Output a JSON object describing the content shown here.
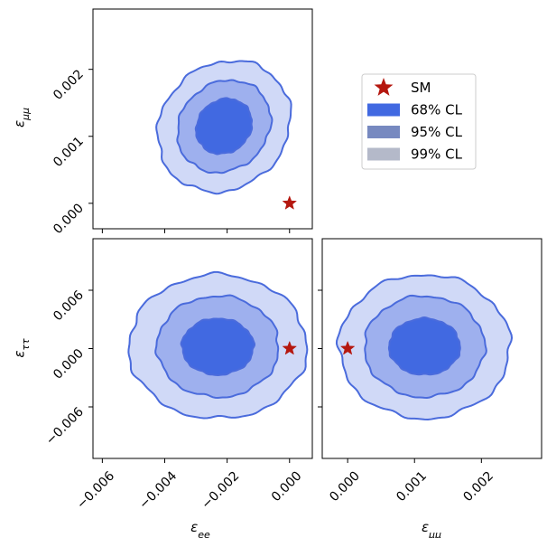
{
  "chart_data": {
    "type": "contour",
    "colors": {
      "cl68": "#4169e1",
      "cl95": "#7789c0",
      "cl99": "#b4b9c9",
      "fill68": "#4169e1",
      "fill95": "#9eb0ee",
      "fill99": "#d0d9f7",
      "edge": "#4a6bdc",
      "sm": "#b5170f"
    },
    "legend": {
      "placement": "upper-right empty cell",
      "items": [
        {
          "key": "sm",
          "label": "SM",
          "marker": "star"
        },
        {
          "key": "cl68",
          "label": "68% CL",
          "marker": "patch"
        },
        {
          "key": "cl95",
          "label": "95% CL",
          "marker": "patch"
        },
        {
          "key": "cl99",
          "label": "99% CL",
          "marker": "patch"
        }
      ]
    },
    "axis_labels": {
      "ee": "ε_ee",
      "mumu": "ε_μμ",
      "tautau": "ε_ττ"
    },
    "panels": [
      {
        "id": "mumu_vs_ee",
        "xvar": "ee",
        "yvar": "mumu",
        "xlim": [
          -0.0063,
          0.00073
        ],
        "ylim": [
          -0.00038,
          0.0029
        ],
        "xticks": [
          -0.006,
          -0.004,
          -0.002,
          0.0
        ],
        "yticks": [
          0.0,
          0.001,
          0.002
        ],
        "ytick_labels": [
          "0.000",
          "0.001",
          "0.002"
        ],
        "center": [
          -0.0021,
          0.00115
        ],
        "semi_axes": {
          "cl68": [
            0.00083,
            0.00044
          ],
          "cl95": [
            0.00138,
            0.00074
          ],
          "cl99": [
            0.00197,
            0.00105
          ]
        },
        "angle_deg": -48,
        "sm_point": [
          0.0,
          0.0
        ]
      },
      {
        "id": "tautau_vs_ee",
        "xvar": "ee",
        "yvar": "tautau",
        "xlim": [
          -0.0063,
          0.00073
        ],
        "ylim": [
          -0.0113,
          0.0113
        ],
        "xticks": [
          -0.006,
          -0.004,
          -0.002,
          0.0
        ],
        "xtick_labels": [
          "−0.006",
          "−0.004",
          "−0.002",
          "0.000"
        ],
        "yticks": [
          -0.006,
          0.0,
          0.006
        ],
        "ytick_labels": [
          "−0.006",
          "0.000",
          "0.006"
        ],
        "center": [
          -0.0023,
          0.0002
        ],
        "semi_axes": {
          "cl68": [
            0.00115,
            0.0029
          ],
          "cl95": [
            0.00195,
            0.0052
          ],
          "cl99": [
            0.00285,
            0.0074
          ]
        },
        "angle_deg": 0,
        "sm_point": [
          0.0,
          0.0
        ]
      },
      {
        "id": "tautau_vs_mumu",
        "xvar": "mumu",
        "yvar": "tautau",
        "xlim": [
          -0.00038,
          0.0029
        ],
        "ylim": [
          -0.0113,
          0.0113
        ],
        "xticks": [
          0.0,
          0.001,
          0.002
        ],
        "xtick_labels": [
          "0.000",
          "0.001",
          "0.002"
        ],
        "yticks": [
          -0.006,
          0.0,
          0.006
        ],
        "center": [
          0.00115,
          0.0002
        ],
        "semi_axes": {
          "cl68": [
            0.00053,
            0.0029
          ],
          "cl95": [
            0.0009,
            0.0052
          ],
          "cl99": [
            0.00128,
            0.0074
          ]
        },
        "angle_deg": 0,
        "sm_point": [
          0.0,
          0.0
        ]
      }
    ]
  }
}
